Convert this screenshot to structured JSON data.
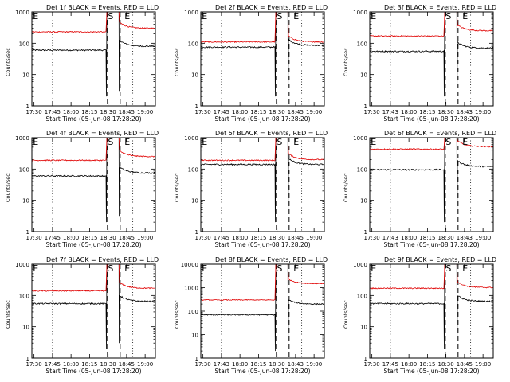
{
  "chart_data": [
    {
      "type": "line",
      "title": "Det 1f BLACK = Events, RED = LLD",
      "ylabel": "Counts/sec",
      "xlabel": "Start Time (05-Jun-08 17:28:20)",
      "ylim": [
        1,
        1000
      ],
      "y_ticks": [
        "1",
        "10",
        "100",
        "1000"
      ],
      "x_ticks": [
        "17:30",
        "17:45",
        "18:00",
        "18:15",
        "18:30",
        "18:45",
        "19:00"
      ],
      "markers": [
        "E",
        "S",
        "E"
      ],
      "series": [
        {
          "color": "#000000",
          "before": 60,
          "after": 80
        },
        {
          "color": "#e00000",
          "before": 230,
          "after": 300
        }
      ]
    },
    {
      "type": "line",
      "title": "Det 2f BLACK = Events, RED = LLD",
      "ylabel": "Counts/sec",
      "xlabel": "Start Time (05-Jun-08 17:28:20)",
      "ylim": [
        1,
        1000
      ],
      "y_ticks": [
        "1",
        "10",
        "100",
        "1000"
      ],
      "x_ticks": [
        "17:30",
        "17:45",
        "18:00",
        "18:15",
        "18:30",
        "18:45",
        "19:00"
      ],
      "markers": [
        "E",
        "S",
        "E"
      ],
      "series": [
        {
          "color": "#000000",
          "before": 75,
          "after": 85
        },
        {
          "color": "#e00000",
          "before": 110,
          "after": 110
        }
      ]
    },
    {
      "type": "line",
      "title": "Det 3f BLACK = Events, RED = LLD",
      "ylabel": "Counts/sec",
      "xlabel": "Start Time (05-Jun-08 17:28:20)",
      "ylim": [
        1,
        1000
      ],
      "y_ticks": [
        "1",
        "10",
        "100",
        "1000"
      ],
      "x_ticks": [
        "17:30",
        "17:43",
        "18:00",
        "18:15",
        "18:30",
        "18:43",
        "19:00"
      ],
      "markers": [
        "E",
        "S",
        "E"
      ],
      "series": [
        {
          "color": "#000000",
          "before": 55,
          "after": 70
        },
        {
          "color": "#e00000",
          "before": 170,
          "after": 250
        }
      ]
    },
    {
      "type": "line",
      "title": "Det 4f BLACK = Events, RED = LLD",
      "ylabel": "Counts/sec",
      "xlabel": "Start Time (05-Jun-08 17:28:20)",
      "ylim": [
        1,
        1000
      ],
      "y_ticks": [
        "1",
        "10",
        "100",
        "1000"
      ],
      "x_ticks": [
        "17:30",
        "17:45",
        "18:00",
        "18:15",
        "18:30",
        "18:45",
        "19:00"
      ],
      "markers": [
        "E",
        "S",
        "E"
      ],
      "series": [
        {
          "color": "#000000",
          "before": 60,
          "after": 75
        },
        {
          "color": "#e00000",
          "before": 190,
          "after": 250
        }
      ]
    },
    {
      "type": "line",
      "title": "Det 5f BLACK = Events, RED = LLD",
      "ylabel": "Counts/sec",
      "xlabel": "Start Time (05-Jun-08 17:28:20)",
      "ylim": [
        1,
        1000
      ],
      "y_ticks": [
        "1",
        "10",
        "100",
        "1000"
      ],
      "x_ticks": [
        "17:30",
        "17:45",
        "18:00",
        "18:15",
        "18:30",
        "18:45",
        "19:00"
      ],
      "markers": [
        "E",
        "S",
        "E"
      ],
      "series": [
        {
          "color": "#000000",
          "before": 140,
          "after": 140
        },
        {
          "color": "#e00000",
          "before": 190,
          "after": 200
        }
      ]
    },
    {
      "type": "line",
      "title": "Det 6f BLACK = Events, RED = LLD",
      "ylabel": "Counts/sec",
      "xlabel": "Start Time (05-Jun-08 17:28:20)",
      "ylim": [
        1,
        1000
      ],
      "y_ticks": [
        "1",
        "10",
        "100",
        "1000"
      ],
      "x_ticks": [
        "17:30",
        "17:43",
        "18:00",
        "18:15",
        "18:30",
        "18:43",
        "19:00"
      ],
      "markers": [
        "E",
        "S",
        "E"
      ],
      "series": [
        {
          "color": "#000000",
          "before": 95,
          "after": 120
        },
        {
          "color": "#e00000",
          "before": 430,
          "after": 520
        }
      ]
    },
    {
      "type": "line",
      "title": "Det 7f BLACK = Events, RED = LLD",
      "ylabel": "Counts/sec",
      "xlabel": "Start Time (05-Jun-08 17:28:20)",
      "ylim": [
        1,
        1000
      ],
      "y_ticks": [
        "1",
        "10",
        "100",
        "1000"
      ],
      "x_ticks": [
        "17:30",
        "17:45",
        "18:00",
        "18:15",
        "18:30",
        "18:45",
        "19:00"
      ],
      "markers": [
        "E",
        "S",
        "E"
      ],
      "series": [
        {
          "color": "#000000",
          "before": 55,
          "after": 65
        },
        {
          "color": "#e00000",
          "before": 140,
          "after": 170
        }
      ]
    },
    {
      "type": "line",
      "title": "Det 8f BLACK = Events, RED = LLD",
      "ylabel": "Counts/sec",
      "xlabel": "Start Time (05-Jun-08 17:28:20)",
      "ylim": [
        1,
        10000
      ],
      "y_ticks": [
        "1",
        "10",
        "100",
        "1000",
        "10000"
      ],
      "x_ticks": [
        "17:30",
        "17:43",
        "18:00",
        "18:15",
        "18:30",
        "18:43",
        "19:00"
      ],
      "markers": [
        "E",
        "S",
        "E"
      ],
      "series": [
        {
          "color": "#000000",
          "before": 70,
          "after": 200
        },
        {
          "color": "#e00000",
          "before": 300,
          "after": 1500
        }
      ]
    },
    {
      "type": "line",
      "title": "Det 9f BLACK = Events, RED = LLD",
      "ylabel": "Counts/sec",
      "xlabel": "Start Time (05-Jun-08 17:28:20)",
      "ylim": [
        1,
        1000
      ],
      "y_ticks": [
        "1",
        "10",
        "100",
        "1000"
      ],
      "x_ticks": [
        "17:30",
        "17:45",
        "18:00",
        "18:15",
        "18:30",
        "18:45",
        "19:00"
      ],
      "markers": [
        "E",
        "S",
        "E"
      ],
      "series": [
        {
          "color": "#000000",
          "before": 55,
          "after": 65
        },
        {
          "color": "#e00000",
          "before": 170,
          "after": 180
        }
      ]
    }
  ]
}
